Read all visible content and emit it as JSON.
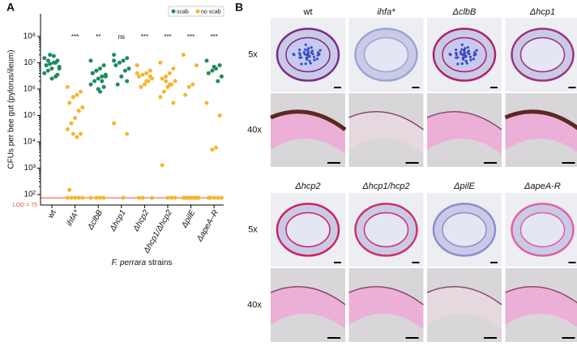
{
  "chart_data": {
    "type": "strip",
    "panel_label": "A",
    "ylabel": "CFUs per bee gut (pylorus/ileum)",
    "xlabel_italic": "F. perrara",
    "xlabel_rest": "strains",
    "categories": [
      "wt",
      "ihfA*",
      "ΔclbB",
      "Δhcp1",
      "Δhcp2",
      "Δhcp1/Δhcp2",
      "ΔpilE",
      "ΔapeA–R"
    ],
    "annotations": [
      null,
      "***",
      "**",
      "ns",
      "***",
      "***",
      "***",
      "***"
    ],
    "log_y": true,
    "ylim": [
      40,
      720000000
    ],
    "yticks": [
      {
        "value": 100,
        "label": "10²"
      },
      {
        "value": 1000,
        "label": "10³"
      },
      {
        "value": 10000,
        "label": "10⁴"
      },
      {
        "value": 100000,
        "label": "10⁵"
      },
      {
        "value": 1000000,
        "label": "10⁶"
      },
      {
        "value": 10000000,
        "label": "10⁷"
      },
      {
        "value": 100000000,
        "label": "10⁸"
      }
    ],
    "lod": {
      "value": 75,
      "label": "LOD = 75",
      "color": "#e0553a"
    },
    "legend": "top-right",
    "series": [
      {
        "name": "scab",
        "color": "#1e8c5e",
        "values": [
          [
            15000000,
            12000000,
            10000000,
            9000000,
            8000000,
            7000000,
            10000000,
            6000000,
            5000000,
            4000000,
            3500000,
            18000000,
            20000000,
            8000000,
            6000000,
            3000000,
            2500000,
            12000000
          ],
          [],
          [
            12000000,
            8000000,
            6000000,
            5000000,
            4000000,
            3500000,
            3000000,
            2500000,
            2000000,
            1500000,
            1200000,
            800000,
            5000000,
            4000000,
            3000000,
            2000000,
            1000000
          ],
          [
            20000000,
            15000000,
            12000000,
            10000000,
            8000000,
            6000000,
            5000000,
            3000000,
            1500000,
            12000000,
            2000000
          ],
          [],
          [],
          [],
          [
            12000000,
            8000000,
            6000000,
            5000000,
            4000000,
            3000000,
            2000000,
            7000000
          ]
        ]
      },
      {
        "name": "no scab",
        "color": "#f5b532",
        "values": [
          [],
          [
            1200000,
            800000,
            600000,
            500000,
            300000,
            200000,
            150000,
            80000,
            50000,
            30000,
            20000,
            15000,
            20000,
            150,
            75,
            75,
            75,
            75,
            75
          ],
          [
            75,
            75,
            75,
            75
          ],
          [
            50000,
            20000,
            75
          ],
          [
            8000000,
            5000000,
            4000000,
            3500000,
            3000000,
            2500000,
            2000000,
            1500000,
            1200000,
            4000000,
            3000000,
            2000000,
            75,
            75,
            75
          ],
          [
            10000000,
            6000000,
            4000000,
            3000000,
            2500000,
            2000000,
            1500000,
            1200000,
            800000,
            500000,
            300000,
            1500000,
            2000000,
            1300,
            75,
            75,
            75
          ],
          [
            20000000,
            8000000,
            1500000,
            1200000,
            600000,
            75,
            75,
            75,
            75,
            75,
            75,
            75,
            75,
            75,
            75,
            75
          ],
          [
            300000,
            100000,
            6000,
            5000,
            75,
            75,
            75,
            75,
            75
          ]
        ]
      }
    ]
  },
  "panel_b": {
    "label": "B",
    "magnifications": [
      "5x",
      "40x"
    ],
    "top_strains": [
      "wt",
      "ihfa*",
      "ΔclbB",
      "Δhcp1"
    ],
    "bottom_strains": [
      "Δhcp2",
      "Δhcp1/hcp2",
      "ΔpilE",
      "ΔapeA-R"
    ]
  }
}
